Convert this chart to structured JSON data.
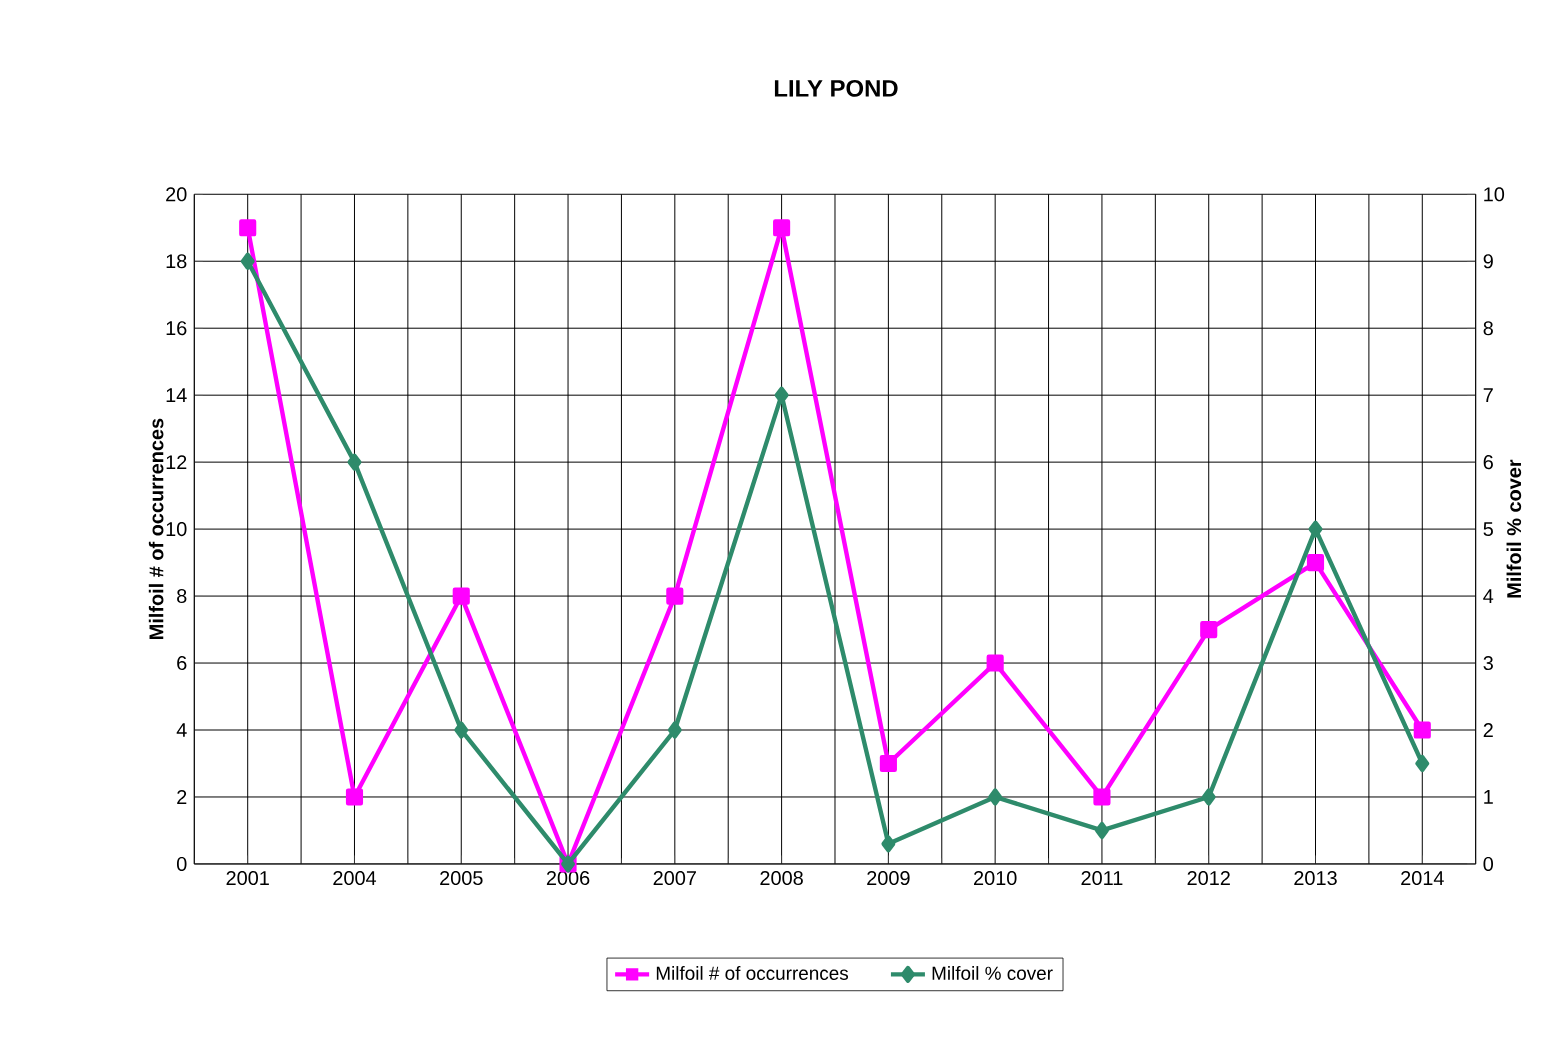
{
  "chart_data": {
    "type": "line",
    "title": "LILY POND",
    "ylabel": "Milfoil  # of occurrences",
    "y2label": "Milfoil  % cover",
    "categories": [
      "2001",
      "2004",
      "2005",
      "2006",
      "2007",
      "2008",
      "2009",
      "2010",
      "2011",
      "2012",
      "2013",
      "2014"
    ],
    "series": [
      {
        "name": "Milfoil # of occurrences",
        "color": "#ff00ff",
        "marker": "square",
        "values": [
          19,
          2,
          8,
          0,
          8,
          19,
          3,
          6,
          2,
          7,
          9,
          4
        ]
      },
      {
        "name": "Milfoil % cover",
        "color": "#2e8b6b",
        "marker": "diamond",
        "axis": "y2",
        "values": [
          9,
          6,
          2,
          0,
          2,
          7,
          0.3,
          1,
          0.5,
          1,
          5,
          1.5
        ]
      }
    ],
    "ylim": [
      0,
      20
    ],
    "yticks": [
      0,
      2,
      4,
      6,
      8,
      10,
      12,
      14,
      16,
      18,
      20
    ],
    "y2lim": [
      0,
      10
    ],
    "y2ticks": [
      0,
      1,
      2,
      3,
      4,
      5,
      6,
      7,
      8,
      9,
      10
    ],
    "grid": true,
    "legend": "bottom",
    "line_style": "solid"
  }
}
